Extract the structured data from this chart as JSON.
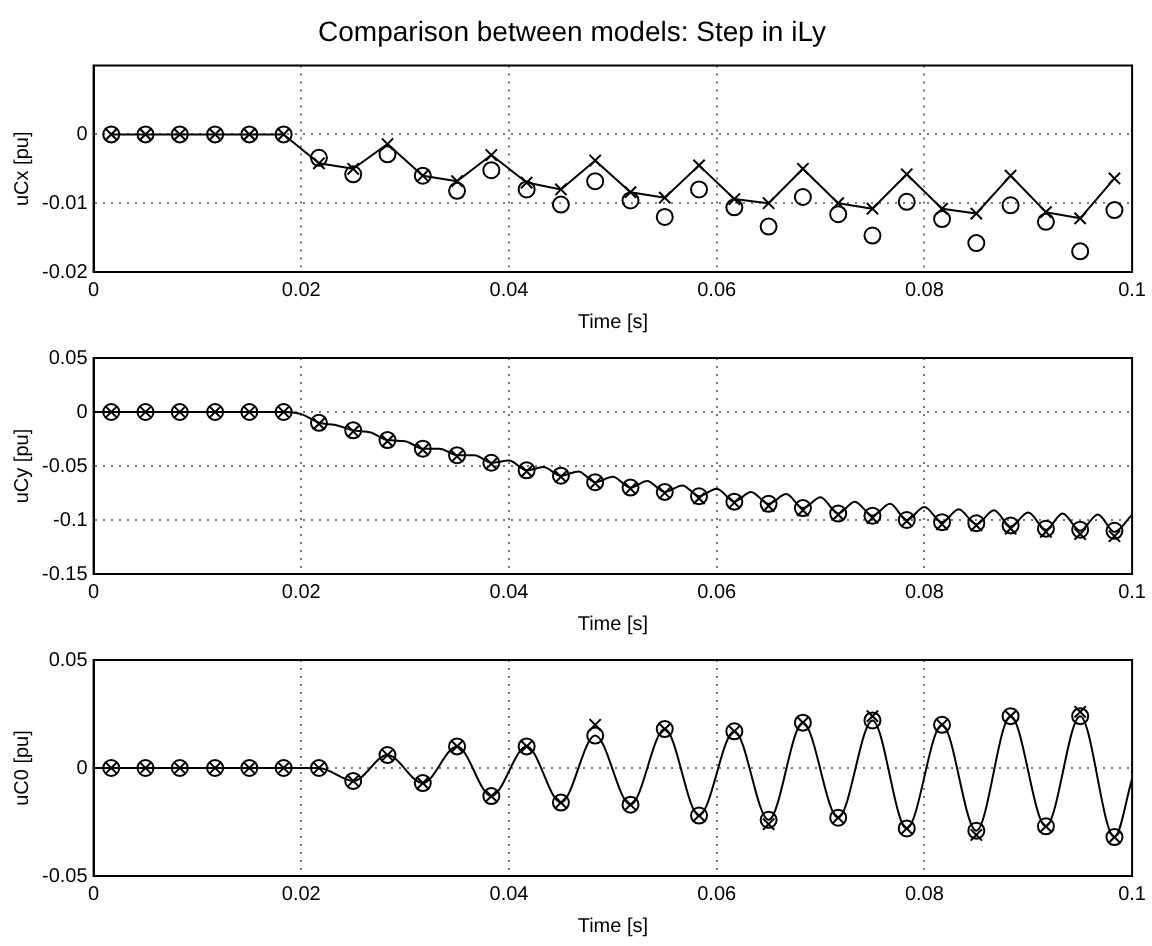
{
  "chart_data": [
    {
      "type": "line",
      "title": "Comparison between models: Step in iLy",
      "xlabel": "Time [s]",
      "ylabel": "uCx [pu]",
      "xlim": [
        0,
        0.1
      ],
      "ylim": [
        -0.02,
        0.01
      ],
      "xticks": [
        0,
        0.02,
        0.04,
        0.06,
        0.08,
        0.1
      ],
      "yticks": [
        -0.02,
        -0.01,
        0
      ],
      "grid": true,
      "series": [
        {
          "type": "line",
          "color": "#000000",
          "marker": "cross",
          "line_style": "solid",
          "x": [
            0.0017,
            0.005,
            0.0083,
            0.0117,
            0.015,
            0.0183,
            0.0217,
            0.025,
            0.0283,
            0.0317,
            0.035,
            0.0383,
            0.0417,
            0.045,
            0.0483,
            0.0517,
            0.055,
            0.0583,
            0.0617,
            0.065,
            0.0683,
            0.0717,
            0.075,
            0.0783,
            0.0817,
            0.085,
            0.0883,
            0.0917,
            0.095,
            0.0983
          ],
          "values": [
            0,
            0,
            0,
            0,
            0,
            0,
            -0.0042,
            -0.005,
            -0.0014,
            -0.006,
            -0.0068,
            -0.003,
            -0.007,
            -0.008,
            -0.0038,
            -0.0084,
            -0.0092,
            -0.0045,
            -0.0094,
            -0.01,
            -0.005,
            -0.01,
            -0.0108,
            -0.0058,
            -0.0108,
            -0.0115,
            -0.006,
            -0.0113,
            -0.0122,
            -0.0064
          ]
        },
        {
          "type": "scatter",
          "color": "#000000",
          "marker": "circle",
          "x": [
            0.0017,
            0.005,
            0.0083,
            0.0117,
            0.015,
            0.0183,
            0.0217,
            0.025,
            0.0283,
            0.0317,
            0.035,
            0.0383,
            0.0417,
            0.045,
            0.0483,
            0.0517,
            0.055,
            0.0583,
            0.0617,
            0.065,
            0.0683,
            0.0717,
            0.075,
            0.0783,
            0.0817,
            0.085,
            0.0883,
            0.0917,
            0.095,
            0.0983
          ],
          "values": [
            0,
            0,
            0,
            0,
            0,
            0,
            -0.0034,
            -0.0058,
            -0.0029,
            -0.006,
            -0.0082,
            -0.0052,
            -0.008,
            -0.0102,
            -0.0068,
            -0.0096,
            -0.012,
            -0.008,
            -0.0106,
            -0.0134,
            -0.0091,
            -0.0116,
            -0.0147,
            -0.0098,
            -0.0123,
            -0.0158,
            -0.0103,
            -0.0127,
            -0.017,
            -0.011
          ]
        }
      ]
    },
    {
      "type": "line",
      "xlabel": "Time [s]",
      "ylabel": "uCy [pu]",
      "xlim": [
        0,
        0.1
      ],
      "ylim": [
        -0.15,
        0.05
      ],
      "xticks": [
        0,
        0.02,
        0.04,
        0.06,
        0.08,
        0.1
      ],
      "yticks": [
        -0.15,
        -0.1,
        -0.05,
        0,
        0.05
      ],
      "grid": true,
      "series": [
        {
          "type": "line",
          "color": "#000000",
          "marker": "none",
          "line_style": "solid",
          "x": [
            0,
            0.0183,
            0.02,
            0.0217,
            0.0233,
            0.025,
            0.0267,
            0.0283,
            0.03,
            0.0317,
            0.0333,
            0.035,
            0.0367,
            0.0383,
            0.04,
            0.0417,
            0.0433,
            0.045,
            0.0467,
            0.0483,
            0.05,
            0.0517,
            0.0533,
            0.055,
            0.0567,
            0.0583,
            0.06,
            0.0617,
            0.0633,
            0.065,
            0.0667,
            0.0683,
            0.07,
            0.0717,
            0.0733,
            0.075,
            0.0767,
            0.0783,
            0.08,
            0.0817,
            0.0833,
            0.085,
            0.0867,
            0.0883,
            0.09,
            0.0917,
            0.0933,
            0.095,
            0.0967,
            0.0983,
            0.1
          ],
          "values": [
            0,
            0,
            -0.002,
            -0.01,
            -0.012,
            -0.017,
            -0.019,
            -0.026,
            -0.027,
            -0.034,
            -0.034,
            -0.04,
            -0.04,
            -0.047,
            -0.045,
            -0.054,
            -0.051,
            -0.059,
            -0.055,
            -0.065,
            -0.06,
            -0.07,
            -0.064,
            -0.074,
            -0.068,
            -0.078,
            -0.071,
            -0.083,
            -0.074,
            -0.085,
            -0.076,
            -0.089,
            -0.079,
            -0.094,
            -0.083,
            -0.096,
            -0.085,
            -0.1,
            -0.088,
            -0.102,
            -0.09,
            -0.104,
            -0.091,
            -0.106,
            -0.093,
            -0.109,
            -0.094,
            -0.11,
            -0.095,
            -0.111,
            -0.095
          ]
        },
        {
          "type": "scatter",
          "color": "#000000",
          "marker": "circle",
          "x": [
            0.0017,
            0.005,
            0.0083,
            0.0117,
            0.015,
            0.0183,
            0.0217,
            0.025,
            0.0283,
            0.0317,
            0.035,
            0.0383,
            0.0417,
            0.045,
            0.0483,
            0.0517,
            0.055,
            0.0583,
            0.0617,
            0.065,
            0.0683,
            0.0717,
            0.075,
            0.0783,
            0.0817,
            0.085,
            0.0883,
            0.0917,
            0.095,
            0.0983
          ],
          "values": [
            0,
            0,
            0,
            0,
            0,
            0,
            -0.01,
            -0.017,
            -0.026,
            -0.034,
            -0.04,
            -0.047,
            -0.054,
            -0.059,
            -0.065,
            -0.07,
            -0.074,
            -0.078,
            -0.083,
            -0.085,
            -0.089,
            -0.094,
            -0.096,
            -0.1,
            -0.102,
            -0.103,
            -0.105,
            -0.108,
            -0.109,
            -0.11
          ]
        },
        {
          "type": "scatter",
          "color": "#000000",
          "marker": "cross",
          "x": [
            0.0017,
            0.005,
            0.0083,
            0.0117,
            0.015,
            0.0183,
            0.0217,
            0.025,
            0.0283,
            0.0317,
            0.035,
            0.0383,
            0.0417,
            0.045,
            0.0483,
            0.0517,
            0.055,
            0.0583,
            0.0617,
            0.065,
            0.0683,
            0.0717,
            0.075,
            0.0783,
            0.0817,
            0.085,
            0.0883,
            0.0917,
            0.095,
            0.0983
          ],
          "values": [
            0,
            0,
            0,
            0,
            0,
            0,
            -0.011,
            -0.018,
            -0.027,
            -0.035,
            -0.041,
            -0.048,
            -0.055,
            -0.06,
            -0.066,
            -0.071,
            -0.075,
            -0.08,
            -0.084,
            -0.087,
            -0.091,
            -0.095,
            -0.098,
            -0.101,
            -0.104,
            -0.105,
            -0.108,
            -0.111,
            -0.113,
            -0.115
          ]
        }
      ]
    },
    {
      "type": "line",
      "xlabel": "Time [s]",
      "ylabel": "uC0 [pu]",
      "xlim": [
        0,
        0.1
      ],
      "ylim": [
        -0.05,
        0.05
      ],
      "xticks": [
        0,
        0.02,
        0.04,
        0.06,
        0.08,
        0.1
      ],
      "yticks": [
        -0.05,
        0,
        0.05
      ],
      "grid": true,
      "series": [
        {
          "type": "line",
          "color": "#000000",
          "marker": "none",
          "line_style": "solid",
          "x": [
            0,
            0.0017,
            0.005,
            0.0083,
            0.0117,
            0.015,
            0.0183,
            0.0217,
            0.025,
            0.0283,
            0.0317,
            0.035,
            0.0383,
            0.0417,
            0.045,
            0.0483,
            0.0517,
            0.055,
            0.0583,
            0.0617,
            0.065,
            0.0683,
            0.0717,
            0.075,
            0.0783,
            0.0817,
            0.085,
            0.0883,
            0.0917,
            0.095,
            0.0983,
            0.1
          ],
          "values": [
            0,
            0,
            0,
            0,
            0,
            0,
            0,
            0,
            -0.006,
            0.006,
            -0.007,
            0.01,
            -0.013,
            0.01,
            -0.016,
            0.015,
            -0.017,
            0.018,
            -0.022,
            0.017,
            -0.024,
            0.021,
            -0.023,
            0.022,
            -0.028,
            0.02,
            -0.029,
            0.024,
            -0.027,
            0.024,
            -0.032,
            -0.005
          ]
        },
        {
          "type": "scatter",
          "color": "#000000",
          "marker": "circle",
          "x": [
            0.0017,
            0.005,
            0.0083,
            0.0117,
            0.015,
            0.0183,
            0.0217,
            0.025,
            0.0283,
            0.0317,
            0.035,
            0.0383,
            0.0417,
            0.045,
            0.0483,
            0.0517,
            0.055,
            0.0583,
            0.0617,
            0.065,
            0.0683,
            0.0717,
            0.075,
            0.0783,
            0.0817,
            0.085,
            0.0883,
            0.0917,
            0.095,
            0.0983
          ],
          "values": [
            0,
            0,
            0,
            0,
            0,
            0,
            0,
            -0.006,
            0.006,
            -0.007,
            0.01,
            -0.013,
            0.01,
            -0.016,
            0.015,
            -0.017,
            0.018,
            -0.022,
            0.017,
            -0.024,
            0.021,
            -0.023,
            0.022,
            -0.028,
            0.02,
            -0.029,
            0.024,
            -0.027,
            0.024,
            -0.032
          ]
        },
        {
          "type": "scatter",
          "color": "#000000",
          "marker": "cross",
          "x": [
            0.0017,
            0.005,
            0.0083,
            0.0117,
            0.015,
            0.0183,
            0.0217,
            0.025,
            0.0283,
            0.0317,
            0.035,
            0.0383,
            0.0417,
            0.045,
            0.0483,
            0.0517,
            0.055,
            0.0583,
            0.0617,
            0.065,
            0.0683,
            0.0717,
            0.075,
            0.0783,
            0.0817,
            0.085,
            0.0883,
            0.0917,
            0.095,
            0.0983
          ],
          "values": [
            0,
            0,
            0,
            0,
            0,
            0,
            0,
            -0.006,
            0.006,
            -0.007,
            0.01,
            -0.013,
            0.01,
            -0.016,
            0.02,
            -0.017,
            0.018,
            -0.022,
            0.017,
            -0.026,
            0.021,
            -0.023,
            0.024,
            -0.028,
            0.02,
            -0.031,
            0.024,
            -0.027,
            0.026,
            -0.032
          ]
        }
      ]
    }
  ]
}
